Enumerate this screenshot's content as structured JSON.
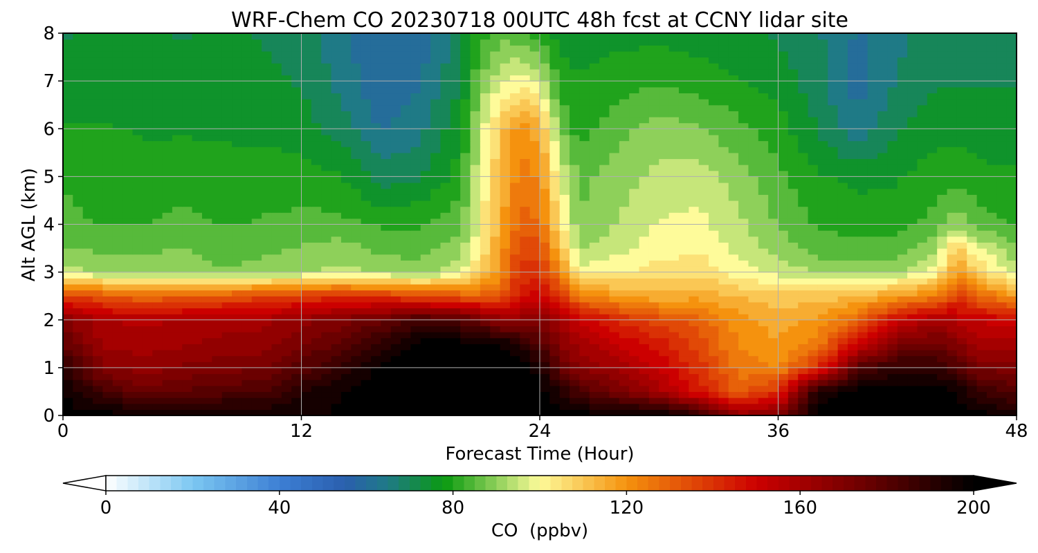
{
  "chart_data": {
    "type": "heatmap",
    "title": "WRF-Chem CO  20230718 00UTC 48h fcst at CCNY lidar site",
    "xlabel": "Forecast Time (Hour)",
    "ylabel": "Alt AGL (km)",
    "xlim": [
      0,
      48
    ],
    "ylim": [
      0,
      8
    ],
    "xticks": [
      0,
      12,
      24,
      36,
      48
    ],
    "yticks": [
      0,
      1,
      2,
      3,
      4,
      5,
      6,
      7,
      8
    ],
    "grid": true,
    "colorbar": {
      "label": "CO  (ppbv)",
      "orientation": "horizontal",
      "vmin": 0,
      "vmax": 200,
      "ticks": [
        0,
        40,
        80,
        120,
        160,
        200
      ],
      "extend": "both",
      "colormap_stops": [
        {
          "value": 0,
          "color": "#ffffff"
        },
        {
          "value": 20,
          "color": "#7cc8f2"
        },
        {
          "value": 40,
          "color": "#3d7fd4"
        },
        {
          "value": 55,
          "color": "#2a5fae"
        },
        {
          "value": 65,
          "color": "#1f7a86"
        },
        {
          "value": 78,
          "color": "#0a9a10"
        },
        {
          "value": 90,
          "color": "#8ed05a"
        },
        {
          "value": 100,
          "color": "#fefb9a"
        },
        {
          "value": 120,
          "color": "#f5920e"
        },
        {
          "value": 150,
          "color": "#cc0000"
        },
        {
          "value": 175,
          "color": "#6b0000"
        },
        {
          "value": 200,
          "color": "#000000"
        }
      ]
    },
    "hours": [
      0,
      2,
      4,
      6,
      8,
      10,
      12,
      14,
      16,
      18,
      20,
      21,
      22,
      23,
      24,
      25,
      26,
      28,
      30,
      32,
      34,
      36,
      38,
      40,
      42,
      44,
      45,
      46,
      48
    ],
    "altitudes_km": [
      0,
      0.5,
      1,
      1.5,
      2,
      2.5,
      3,
      3.5,
      4,
      5,
      6,
      7,
      8
    ],
    "co_ppbv": [
      [
        200,
        200,
        198,
        200,
        200,
        198,
        197,
        198,
        200,
        200,
        200,
        200,
        200,
        200,
        200,
        200,
        200,
        200,
        200,
        190,
        165,
        170,
        200,
        200,
        200,
        200,
        200,
        200,
        195
      ],
      [
        198,
        185,
        175,
        178,
        180,
        182,
        192,
        198,
        200,
        200,
        200,
        200,
        200,
        200,
        200,
        192,
        182,
        172,
        160,
        145,
        130,
        140,
        195,
        200,
        200,
        200,
        198,
        188,
        180
      ],
      [
        190,
        168,
        165,
        168,
        170,
        172,
        180,
        188,
        200,
        200,
        200,
        200,
        200,
        200,
        195,
        178,
        168,
        160,
        152,
        140,
        125,
        122,
        140,
        180,
        190,
        188,
        182,
        172,
        170
      ],
      [
        178,
        162,
        160,
        162,
        164,
        165,
        172,
        178,
        190,
        200,
        200,
        200,
        198,
        192,
        182,
        168,
        160,
        152,
        145,
        135,
        122,
        118,
        125,
        150,
        170,
        175,
        168,
        160,
        160
      ],
      [
        168,
        158,
        156,
        158,
        160,
        160,
        165,
        170,
        175,
        185,
        180,
        175,
        165,
        165,
        168,
        160,
        152,
        142,
        135,
        130,
        120,
        115,
        118,
        130,
        150,
        160,
        155,
        152,
        150
      ],
      [
        138,
        132,
        128,
        130,
        132,
        135,
        138,
        140,
        140,
        135,
        132,
        130,
        132,
        145,
        150,
        140,
        125,
        118,
        114,
        116,
        112,
        110,
        110,
        112,
        118,
        125,
        138,
        130,
        118
      ],
      [
        95,
        92,
        90,
        92,
        88,
        90,
        92,
        94,
        92,
        90,
        96,
        108,
        120,
        140,
        140,
        122,
        100,
        102,
        105,
        106,
        100,
        96,
        92,
        90,
        92,
        100,
        120,
        108,
        95
      ],
      [
        88,
        86,
        86,
        88,
        85,
        86,
        88,
        90,
        86,
        85,
        90,
        102,
        118,
        136,
        135,
        112,
        92,
        96,
        100,
        102,
        96,
        90,
        85,
        84,
        85,
        92,
        110,
        98,
        88
      ],
      [
        84,
        82,
        82,
        84,
        82,
        83,
        84,
        84,
        82,
        82,
        86,
        100,
        115,
        130,
        128,
        105,
        88,
        93,
        98,
        99,
        94,
        87,
        82,
        80,
        80,
        85,
        92,
        85,
        82
      ],
      [
        82,
        80,
        79,
        80,
        79,
        80,
        80,
        78,
        70,
        72,
        80,
        98,
        112,
        125,
        122,
        98,
        86,
        90,
        94,
        95,
        90,
        84,
        78,
        76,
        77,
        80,
        80,
        79,
        78
      ],
      [
        78,
        78,
        77,
        77,
        77,
        76,
        75,
        70,
        62,
        66,
        76,
        94,
        110,
        120,
        115,
        88,
        80,
        86,
        90,
        88,
        84,
        80,
        72,
        64,
        72,
        76,
        76,
        75,
        75
      ],
      [
        75,
        75,
        75,
        74,
        75,
        74,
        72,
        66,
        58,
        62,
        72,
        88,
        96,
        100,
        96,
        80,
        78,
        80,
        82,
        80,
        78,
        75,
        70,
        60,
        68,
        72,
        72,
        72,
        72
      ],
      [
        72,
        73,
        73,
        72,
        73,
        72,
        70,
        64,
        58,
        60,
        70,
        80,
        86,
        84,
        80,
        76,
        75,
        76,
        76,
        75,
        74,
        72,
        68,
        62,
        66,
        70,
        70,
        70,
        70
      ]
    ]
  }
}
